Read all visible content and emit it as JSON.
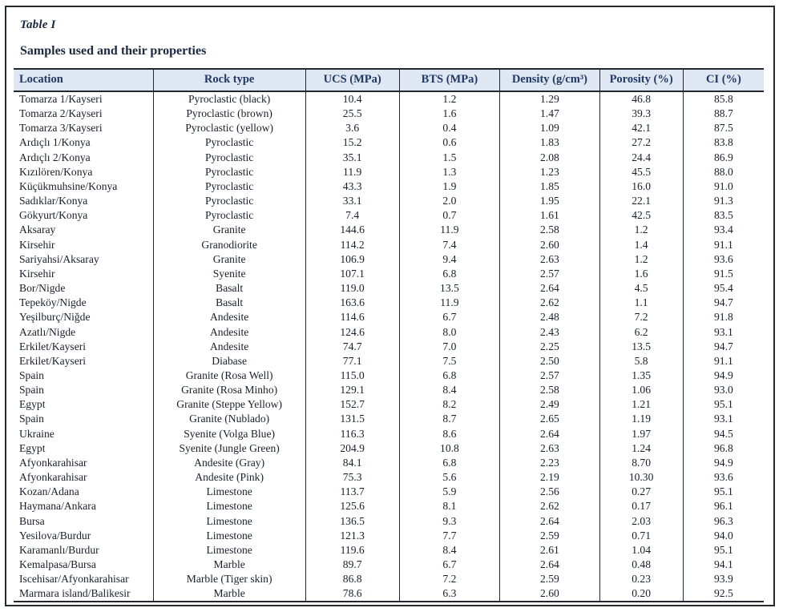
{
  "table": {
    "label": "Table I",
    "caption": "Samples used and their properties",
    "columns": [
      "Location",
      "Rock type",
      "UCS (MPa)",
      "BTS (MPa)",
      "Density (g/cm³)",
      "Porosity (%)",
      "CI (%)"
    ],
    "rows": [
      [
        "Tomarza 1/Kayseri",
        "Pyroclastic (black)",
        "10.4",
        "1.2",
        "1.29",
        "46.8",
        "85.8"
      ],
      [
        "Tomarza 2/Kayseri",
        "Pyroclastic (brown)",
        "25.5",
        "1.6",
        "1.47",
        "39.3",
        "88.7"
      ],
      [
        "Tomarza 3/Kayseri",
        "Pyroclastic (yellow)",
        "3.6",
        "0.4",
        "1.09",
        "42.1",
        "87.5"
      ],
      [
        "Ardıçlı 1/Konya",
        "Pyroclastic",
        "15.2",
        "0.6",
        "1.83",
        "27.2",
        "83.8"
      ],
      [
        "Ardıçlı 2/Konya",
        "Pyroclastic",
        "35.1",
        "1.5",
        "2.08",
        "24.4",
        "86.9"
      ],
      [
        "Kızılören/Konya",
        "Pyroclastic",
        "11.9",
        "1.3",
        "1.23",
        "45.5",
        "88.0"
      ],
      [
        "Küçükmuhsine/Konya",
        "Pyroclastic",
        "43.3",
        "1.9",
        "1.85",
        "16.0",
        "91.0"
      ],
      [
        "Sadıklar/Konya",
        "Pyroclastic",
        "33.1",
        "2.0",
        "1.95",
        "22.1",
        "91.3"
      ],
      [
        "Gökyurt/Konya",
        "Pyroclastic",
        "7.4",
        "0.7",
        "1.61",
        "42.5",
        "83.5"
      ],
      [
        "Aksaray",
        "Granite",
        "144.6",
        "11.9",
        "2.58",
        "1.2",
        "93.4"
      ],
      [
        "Kirsehir",
        "Granodiorite",
        "114.2",
        "7.4",
        "2.60",
        "1.4",
        "91.1"
      ],
      [
        "Sariyahsi/Aksaray",
        "Granite",
        "106.9",
        "9.4",
        "2.63",
        "1.2",
        "93.6"
      ],
      [
        "Kirsehir",
        "Syenite",
        "107.1",
        "6.8",
        "2.57",
        "1.6",
        "91.5"
      ],
      [
        "Bor/Nigde",
        "Basalt",
        "119.0",
        "13.5",
        "2.64",
        "4.5",
        "95.4"
      ],
      [
        "Tepeköy/Nigde",
        "Basalt",
        "163.6",
        "11.9",
        "2.62",
        "1.1",
        "94.7"
      ],
      [
        "Yeşilburç/Niğde",
        "Andesite",
        "114.6",
        "6.7",
        "2.48",
        "7.2",
        "91.8"
      ],
      [
        "Azatlı/Nigde",
        "Andesite",
        "124.6",
        "8.0",
        "2.43",
        "6.2",
        "93.1"
      ],
      [
        "Erkilet/Kayseri",
        "Andesite",
        "74.7",
        "7.0",
        "2.25",
        "13.5",
        "94.7"
      ],
      [
        "Erkilet/Kayseri",
        "Diabase",
        "77.1",
        "7.5",
        "2.50",
        "5.8",
        "91.1"
      ],
      [
        "Spain",
        "Granite (Rosa Well)",
        "115.0",
        "6.8",
        "2.57",
        "1.35",
        "94.9"
      ],
      [
        "Spain",
        "Granite (Rosa Minho)",
        "129.1",
        "8.4",
        "2.58",
        "1.06",
        "93.0"
      ],
      [
        "Egypt",
        "Granite (Steppe Yellow)",
        "152.7",
        "8.2",
        "2.49",
        "1.21",
        "95.1"
      ],
      [
        "Spain",
        "Granite (Nublado)",
        "131.5",
        "8.7",
        "2.65",
        "1.19",
        "93.1"
      ],
      [
        "Ukraine",
        "Syenite (Volga Blue)",
        "116.3",
        "8.6",
        "2.64",
        "1.97",
        "94.5"
      ],
      [
        "Egypt",
        "Syenite (Jungle Green)",
        "204.9",
        "10.8",
        "2.63",
        "1.24",
        "96.8"
      ],
      [
        "Afyonkarahisar",
        "Andesite (Gray)",
        "84.1",
        "6.8",
        "2.23",
        "8.70",
        "94.9"
      ],
      [
        "Afyonkarahisar",
        "Andesite (Pink)",
        "75.3",
        "5.6",
        "2.19",
        "10.30",
        "93.6"
      ],
      [
        "Kozan/Adana",
        "Limestone",
        "113.7",
        "5.9",
        "2.56",
        "0.27",
        "95.1"
      ],
      [
        "Haymana/Ankara",
        "Limestone",
        "125.6",
        "8.1",
        "2.62",
        "0.17",
        "96.1"
      ],
      [
        "Bursa",
        "Limestone",
        "136.5",
        "9.3",
        "2.64",
        "2.03",
        "96.3"
      ],
      [
        "Yesilova/Burdur",
        "Limestone",
        "121.3",
        "7.7",
        "2.59",
        "0.71",
        "94.0"
      ],
      [
        "Karamanlı/Burdur",
        "Limestone",
        "119.6",
        "8.4",
        "2.61",
        "1.04",
        "95.1"
      ],
      [
        "Kemalpasa/Bursa",
        "Marble",
        "89.7",
        "6.7",
        "2.64",
        "0.48",
        "94.1"
      ],
      [
        "Iscehisar/Afyonkarahisar",
        "Marble (Tiger skin)",
        "86.8",
        "7.2",
        "2.59",
        "0.23",
        "93.9"
      ],
      [
        "Marmara island/Balikesir",
        "Marble",
        "78.6",
        "6.3",
        "2.60",
        "0.20",
        "92.5"
      ]
    ]
  },
  "colors": {
    "header_bg": "#dfe8f2",
    "header_text": "#1f3864",
    "body_text": "#191f2a",
    "rule": "#23272e"
  }
}
